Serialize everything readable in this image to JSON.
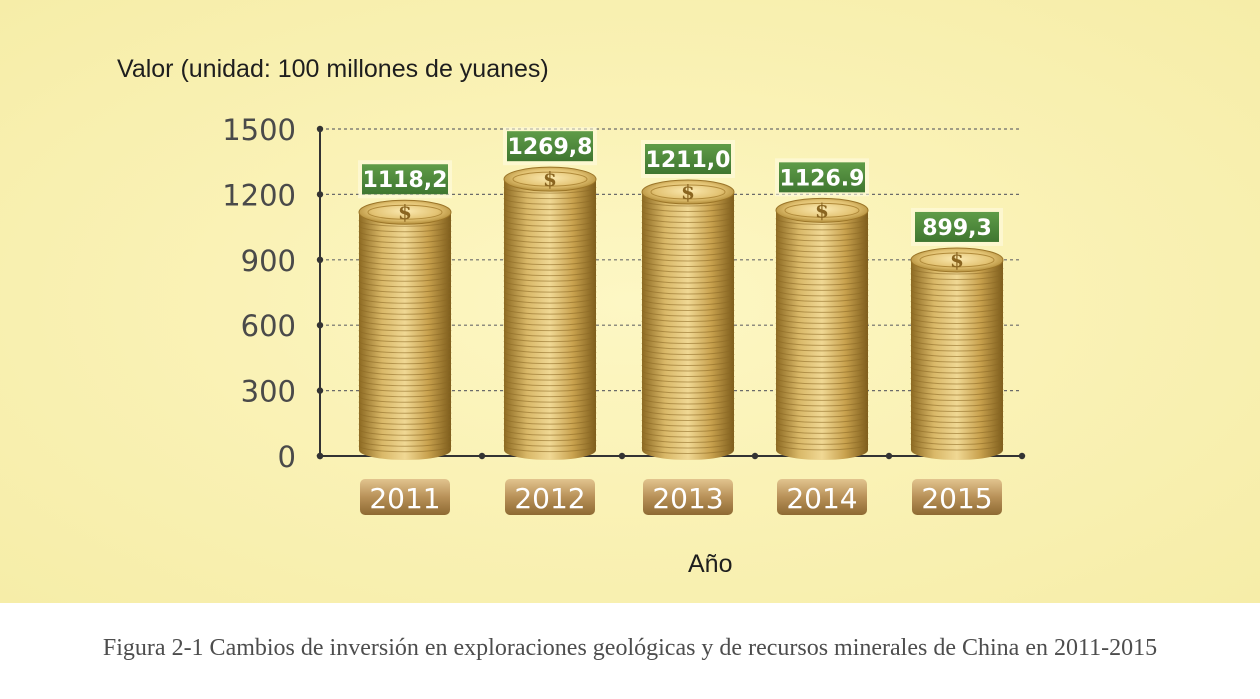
{
  "caption": "Figura 2-1 Cambios de inversión en exploraciones geológicas y de recursos minerales de China en 2011-2015",
  "chart_data": {
    "type": "bar",
    "title": "",
    "ylabel": "Valor (unidad: 100 millones de yuanes)",
    "xlabel": "Año",
    "categories": [
      "2011",
      "2012",
      "2013",
      "2014",
      "2015"
    ],
    "values": [
      1118.2,
      1269.8,
      1211.0,
      1126.9,
      899.3
    ],
    "value_labels": [
      "1118,2",
      "1269,8",
      "1211,0",
      "1126.9",
      "899,3"
    ],
    "yticks": [
      "0",
      "300",
      "600",
      "900",
      "1200",
      "1500"
    ],
    "ylim": [
      0,
      1500
    ],
    "grid": true,
    "bar_style": "stacked gold coins",
    "colors": {
      "coin": "#c9a24e",
      "coin_dark": "#8d6a22",
      "label_bg": "#4f8a3a",
      "year_plate": "#b89158",
      "axis": "#333333"
    }
  }
}
